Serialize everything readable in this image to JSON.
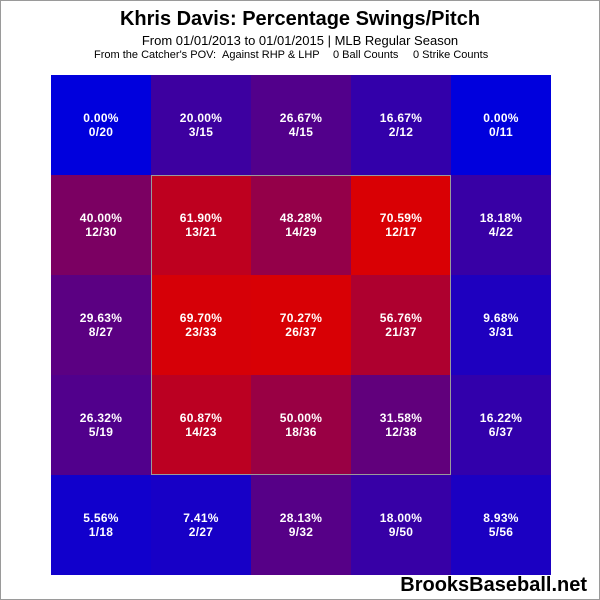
{
  "header": {
    "title": "Khris Davis: Percentage Swings/Pitch",
    "subtitle": "From 01/01/2013 to 01/01/2015 | MLB Regular Season",
    "filters": [
      "From the Catcher's POV:",
      "Against RHP & LHP",
      "0 Ball Counts",
      "0 Strike Counts"
    ]
  },
  "credit": "BrooksBaseball.net",
  "colors": {
    "cold": "#0000dd",
    "hot": "#dd0000",
    "text": "#ffffff",
    "zone_border": "#9a9a9a"
  },
  "chart_data": {
    "type": "heatmap",
    "title": "Khris Davis: Percentage Swings/Pitch",
    "rows": 5,
    "cols": 5,
    "cells": [
      [
        {
          "pct": "0.00%",
          "count": "0/20",
          "value": 0.0
        },
        {
          "pct": "20.00%",
          "count": "3/15",
          "value": 20.0
        },
        {
          "pct": "26.67%",
          "count": "4/15",
          "value": 26.67
        },
        {
          "pct": "16.67%",
          "count": "2/12",
          "value": 16.67
        },
        {
          "pct": "0.00%",
          "count": "0/11",
          "value": 0.0
        }
      ],
      [
        {
          "pct": "40.00%",
          "count": "12/30",
          "value": 40.0
        },
        {
          "pct": "61.90%",
          "count": "13/21",
          "value": 61.9
        },
        {
          "pct": "48.28%",
          "count": "14/29",
          "value": 48.28
        },
        {
          "pct": "70.59%",
          "count": "12/17",
          "value": 70.59
        },
        {
          "pct": "18.18%",
          "count": "4/22",
          "value": 18.18
        }
      ],
      [
        {
          "pct": "29.63%",
          "count": "8/27",
          "value": 29.63
        },
        {
          "pct": "69.70%",
          "count": "23/33",
          "value": 69.7
        },
        {
          "pct": "70.27%",
          "count": "26/37",
          "value": 70.27
        },
        {
          "pct": "56.76%",
          "count": "21/37",
          "value": 56.76
        },
        {
          "pct": "9.68%",
          "count": "3/31",
          "value": 9.68
        }
      ],
      [
        {
          "pct": "26.32%",
          "count": "5/19",
          "value": 26.32
        },
        {
          "pct": "60.87%",
          "count": "14/23",
          "value": 60.87
        },
        {
          "pct": "50.00%",
          "count": "18/36",
          "value": 50.0
        },
        {
          "pct": "31.58%",
          "count": "12/38",
          "value": 31.58
        },
        {
          "pct": "16.22%",
          "count": "6/37",
          "value": 16.22
        }
      ],
      [
        {
          "pct": "5.56%",
          "count": "1/18",
          "value": 5.56
        },
        {
          "pct": "7.41%",
          "count": "2/27",
          "value": 7.41
        },
        {
          "pct": "28.13%",
          "count": "9/32",
          "value": 28.13
        },
        {
          "pct": "18.00%",
          "count": "9/50",
          "value": 18.0
        },
        {
          "pct": "8.93%",
          "count": "5/56",
          "value": 8.93
        }
      ]
    ],
    "strike_zone": "inner 3x3 cells outlined"
  }
}
